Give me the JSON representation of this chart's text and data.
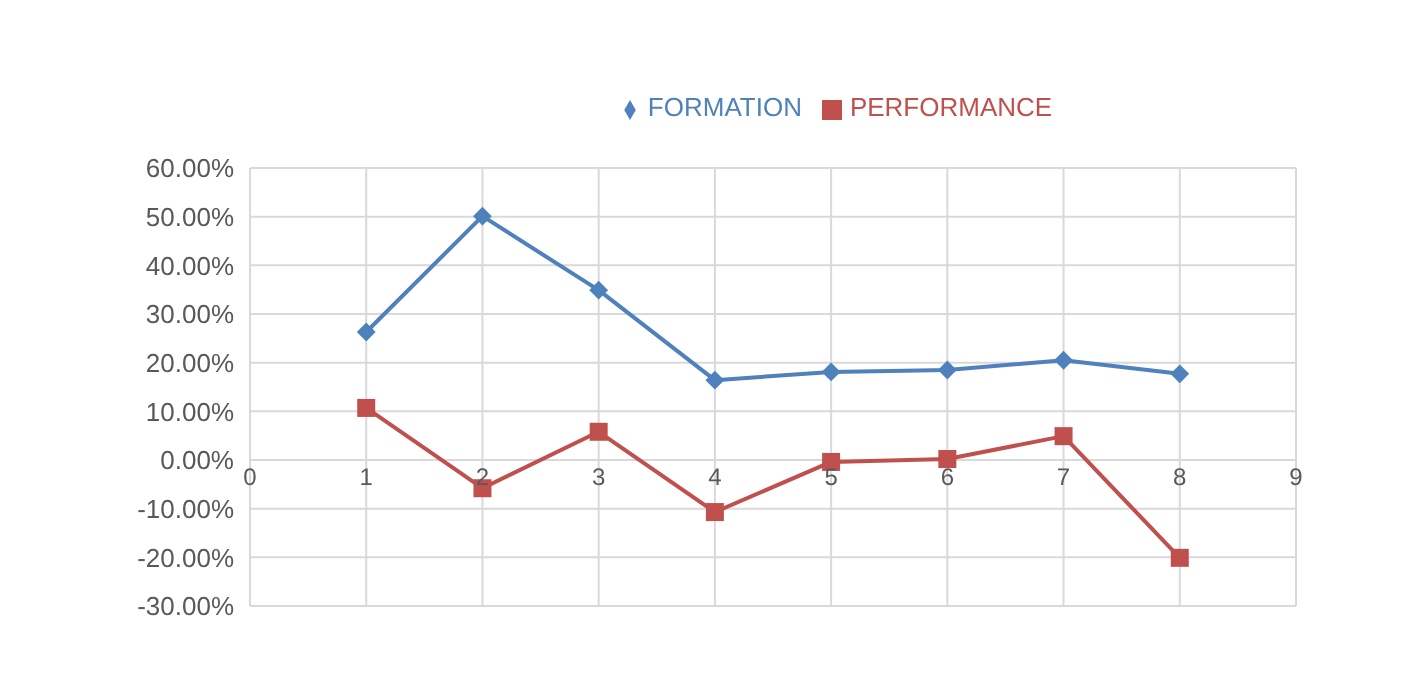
{
  "chart_data": {
    "type": "line",
    "x": [
      1,
      2,
      3,
      4,
      5,
      6,
      7,
      8
    ],
    "series": [
      {
        "name": "FORMATION",
        "color": "#4f81bd",
        "marker": "diamond",
        "values": [
          26.3,
          50.1,
          34.9,
          16.4,
          18.1,
          18.5,
          20.5,
          17.7
        ]
      },
      {
        "name": "PERFORMANCE",
        "color": "#c0504d",
        "marker": "square",
        "values": [
          10.7,
          -5.8,
          5.8,
          -10.7,
          -0.4,
          0.2,
          4.9,
          -20.1
        ]
      }
    ],
    "xlim": [
      0,
      9
    ],
    "xticks": [
      0,
      1,
      2,
      3,
      4,
      5,
      6,
      7,
      8,
      9
    ],
    "ylim": [
      -30,
      60
    ],
    "yticks": [
      {
        "value": -30,
        "label": "-30.00%"
      },
      {
        "value": -20,
        "label": "-20.00%"
      },
      {
        "value": -10,
        "label": "-10.00%"
      },
      {
        "value": 0,
        "label": "0.00%"
      },
      {
        "value": 10,
        "label": "10.00%"
      },
      {
        "value": 20,
        "label": "20.00%"
      },
      {
        "value": 30,
        "label": "30.00%"
      },
      {
        "value": 40,
        "label": "40.00%"
      },
      {
        "value": 50,
        "label": "50.00%"
      },
      {
        "value": 60,
        "label": "60.00%"
      }
    ],
    "grid": true,
    "legend": "top"
  }
}
